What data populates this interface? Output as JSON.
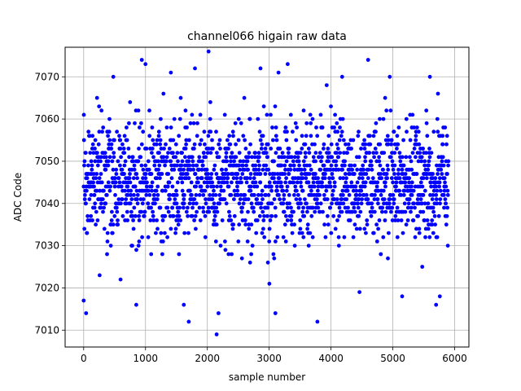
{
  "chart_data": {
    "type": "scatter",
    "title": "channel066 higain raw data",
    "xlabel": "sample number",
    "ylabel": "ADC Code",
    "xlim": [
      -300,
      6230
    ],
    "ylim": [
      7006,
      7077
    ],
    "xticks": [
      0,
      1000,
      2000,
      3000,
      4000,
      5000,
      6000
    ],
    "yticks": [
      7010,
      7020,
      7030,
      7040,
      7050,
      7060,
      7070
    ],
    "grid": true,
    "marker_color": "#0000ff",
    "n_samples": 5900,
    "y_center": 7045,
    "y_spread": 7,
    "notable_points": [
      {
        "x": 2020,
        "y": 7076
      },
      {
        "x": 940,
        "y": 7074
      },
      {
        "x": 4600,
        "y": 7074
      },
      {
        "x": 3300,
        "y": 7073
      },
      {
        "x": 1000,
        "y": 7073
      },
      {
        "x": 1800,
        "y": 7072
      },
      {
        "x": 2860,
        "y": 7072
      },
      {
        "x": 1410,
        "y": 7071
      },
      {
        "x": 3150,
        "y": 7071
      },
      {
        "x": 480,
        "y": 7070
      },
      {
        "x": 4950,
        "y": 7070
      },
      {
        "x": 5600,
        "y": 7070
      },
      {
        "x": 4180,
        "y": 7070
      },
      {
        "x": 2150,
        "y": 7009
      },
      {
        "x": 1700,
        "y": 7012
      },
      {
        "x": 3780,
        "y": 7012
      },
      {
        "x": 40,
        "y": 7014
      },
      {
        "x": 3100,
        "y": 7014
      },
      {
        "x": 2180,
        "y": 7014
      },
      {
        "x": 850,
        "y": 7016
      },
      {
        "x": 1620,
        "y": 7016
      },
      {
        "x": 5700,
        "y": 7016
      },
      {
        "x": 5150,
        "y": 7018
      },
      {
        "x": 5760,
        "y": 7018
      },
      {
        "x": 0,
        "y": 7017
      }
    ]
  }
}
